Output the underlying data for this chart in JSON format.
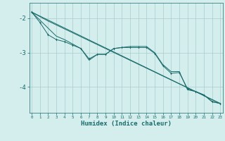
{
  "xlabel": "Humidex (Indice chaleur)",
  "background_color": "#d4eeee",
  "grid_color": "#a8cccc",
  "line_color": "#1a6b6b",
  "x_data": [
    0,
    1,
    2,
    3,
    4,
    5,
    6,
    7,
    8,
    9,
    10,
    11,
    12,
    13,
    14,
    15,
    16,
    17,
    18,
    19,
    20,
    21,
    22,
    23
  ],
  "line1_y": [
    -1.82,
    -2.12,
    -2.48,
    -2.62,
    -2.68,
    -2.78,
    -2.88,
    -3.18,
    -3.05,
    -3.05,
    -2.88,
    -2.85,
    -2.85,
    -2.85,
    -2.85,
    -3.02,
    -3.38,
    -3.6,
    -3.58,
    -4.05,
    -4.13,
    -4.23,
    -4.42,
    -4.48
  ],
  "line2_x": [
    0,
    3,
    4,
    5,
    6,
    7,
    8,
    9,
    10,
    11,
    12,
    13,
    14,
    15,
    16,
    17,
    18,
    19,
    20,
    21,
    22,
    23
  ],
  "line2_y": [
    -1.82,
    -2.52,
    -2.62,
    -2.75,
    -2.88,
    -3.22,
    -3.05,
    -3.05,
    -2.88,
    -2.85,
    -2.82,
    -2.82,
    -2.82,
    -3.0,
    -3.35,
    -3.55,
    -3.55,
    -4.08,
    -4.13,
    -4.23,
    -4.43,
    -4.48
  ],
  "line3_x": [
    0,
    2,
    23
  ],
  "line3_y": [
    -1.82,
    -2.08,
    -4.48
  ],
  "line4_x": [
    0,
    23
  ],
  "line4_y": [
    -1.82,
    -4.48
  ],
  "ylim": [
    -4.75,
    -1.55
  ],
  "xlim": [
    -0.3,
    23.3
  ],
  "yticks": [
    -2,
    -3,
    -4
  ],
  "xticks": [
    0,
    1,
    2,
    3,
    4,
    5,
    6,
    7,
    8,
    9,
    10,
    11,
    12,
    13,
    14,
    15,
    16,
    17,
    18,
    19,
    20,
    21,
    22,
    23
  ]
}
